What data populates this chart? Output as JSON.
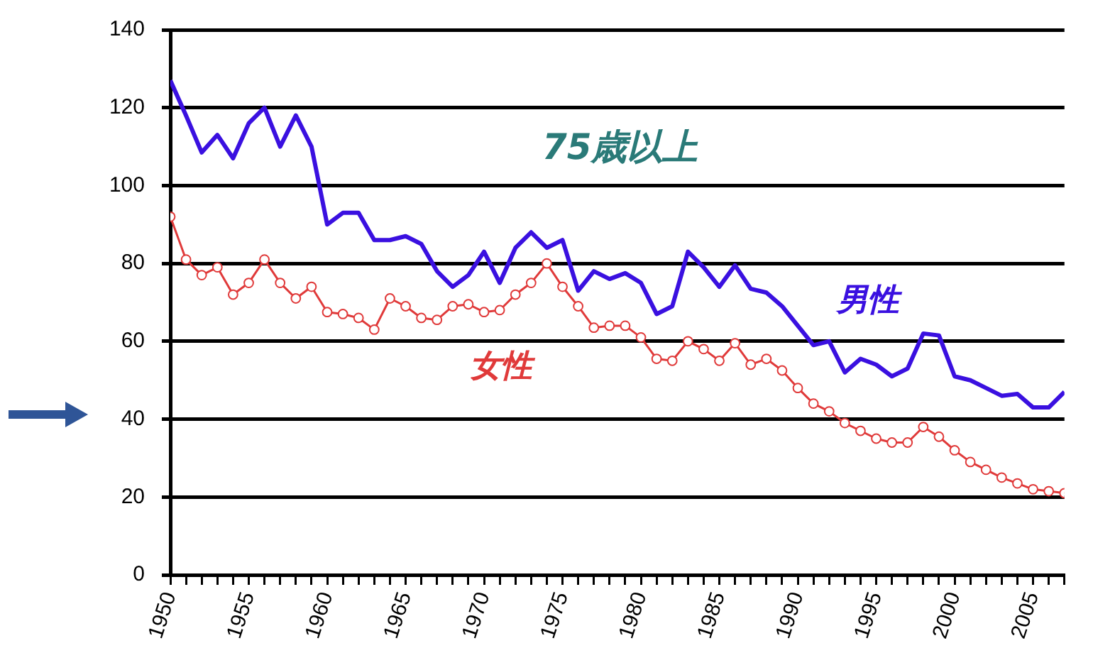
{
  "chart_data": {
    "type": "line",
    "annotations": [
      "75歳以上"
    ],
    "x": [
      1950,
      1951,
      1952,
      1953,
      1954,
      1955,
      1956,
      1957,
      1958,
      1959,
      1960,
      1961,
      1962,
      1963,
      1964,
      1965,
      1966,
      1967,
      1968,
      1969,
      1970,
      1971,
      1972,
      1973,
      1974,
      1975,
      1976,
      1977,
      1978,
      1979,
      1980,
      1981,
      1982,
      1983,
      1984,
      1985,
      1986,
      1987,
      1988,
      1989,
      1990,
      1991,
      1992,
      1993,
      1994,
      1995,
      1996,
      1997,
      1998,
      1999,
      2000,
      2001,
      2002,
      2003,
      2004,
      2005,
      2006,
      2007
    ],
    "series": [
      {
        "name": "男性",
        "color": "#3a10e0",
        "marker": "none",
        "values": [
          127,
          118,
          108.5,
          113,
          107,
          116,
          120,
          110,
          118,
          110,
          90,
          93,
          93,
          86,
          86,
          87,
          85,
          78,
          74,
          77,
          83,
          75,
          84,
          88,
          84,
          86,
          73,
          78,
          76,
          77.5,
          75,
          67,
          69,
          83,
          79,
          74,
          79.5,
          73.5,
          72.5,
          69,
          64,
          59,
          60,
          52,
          55.5,
          54,
          51,
          53,
          62,
          61.5,
          51,
          50,
          48,
          46,
          46.5,
          43,
          43,
          47
        ]
      },
      {
        "name": "女性",
        "color": "#e03a3a",
        "marker": "circle",
        "values": [
          92,
          81,
          77,
          79,
          72,
          75,
          81,
          75,
          71,
          74,
          67.5,
          67,
          66,
          63,
          71,
          69,
          66,
          65.5,
          69,
          69.5,
          67.5,
          68,
          72,
          75,
          80,
          74,
          69,
          63.5,
          64,
          64,
          61,
          55.5,
          55,
          60,
          58,
          55,
          59.5,
          54,
          55.5,
          52.5,
          48,
          44,
          42,
          39,
          37,
          35,
          34,
          34,
          38,
          35.5,
          32,
          29,
          27,
          25,
          23.5,
          22,
          21.5,
          21
        ]
      }
    ],
    "xlim": [
      1950,
      2007
    ],
    "xticks": [
      1950,
      {
        "value": 1951,
        "label": null
      },
      {
        "value": 1952,
        "label": null
      },
      {
        "value": 1953,
        "label": null
      },
      {
        "value": 1954,
        "label": null
      },
      1955,
      {
        "value": 1956,
        "label": null
      },
      {
        "value": 1957,
        "label": null
      },
      {
        "value": 1958,
        "label": null
      },
      {
        "value": 1959,
        "label": null
      },
      1960,
      {
        "value": 1961,
        "label": null
      },
      {
        "value": 1962,
        "label": null
      },
      {
        "value": 1963,
        "label": null
      },
      {
        "value": 1964,
        "label": null
      },
      1965,
      {
        "value": 1966,
        "label": null
      },
      {
        "value": 1967,
        "label": null
      },
      {
        "value": 1968,
        "label": null
      },
      {
        "value": 1969,
        "label": null
      },
      1970,
      {
        "value": 1971,
        "label": null
      },
      {
        "value": 1972,
        "label": null
      },
      {
        "value": 1973,
        "label": null
      },
      {
        "value": 1974,
        "label": null
      },
      1975,
      {
        "value": 1976,
        "label": null
      },
      {
        "value": 1977,
        "label": null
      },
      {
        "value": 1978,
        "label": null
      },
      {
        "value": 1979,
        "label": null
      },
      1980,
      {
        "value": 1981,
        "label": null
      },
      {
        "value": 1982,
        "label": null
      },
      {
        "value": 1983,
        "label": null
      },
      {
        "value": 1984,
        "label": null
      },
      1985,
      {
        "value": 1986,
        "label": null
      },
      {
        "value": 1987,
        "label": null
      },
      {
        "value": 1988,
        "label": null
      },
      {
        "value": 1989,
        "label": null
      },
      1990,
      {
        "value": 1991,
        "label": null
      },
      {
        "value": 1992,
        "label": null
      },
      {
        "value": 1993,
        "label": null
      },
      {
        "value": 1994,
        "label": null
      },
      1995,
      {
        "value": 1996,
        "label": null
      },
      {
        "value": 1997,
        "label": null
      },
      {
        "value": 1998,
        "label": null
      },
      {
        "value": 1999,
        "label": null
      },
      2000,
      {
        "value": 2001,
        "label": null
      },
      {
        "value": 2002,
        "label": null
      },
      {
        "value": 2003,
        "label": null
      },
      {
        "value": 2004,
        "label": null
      },
      2005,
      {
        "value": 2006,
        "label": null
      },
      {
        "value": 2007,
        "label": null
      }
    ],
    "ylim": [
      0,
      140
    ],
    "yticks": [
      0,
      20,
      40,
      60,
      80,
      100,
      120,
      140
    ],
    "grid": "y",
    "legend": false
  }
}
